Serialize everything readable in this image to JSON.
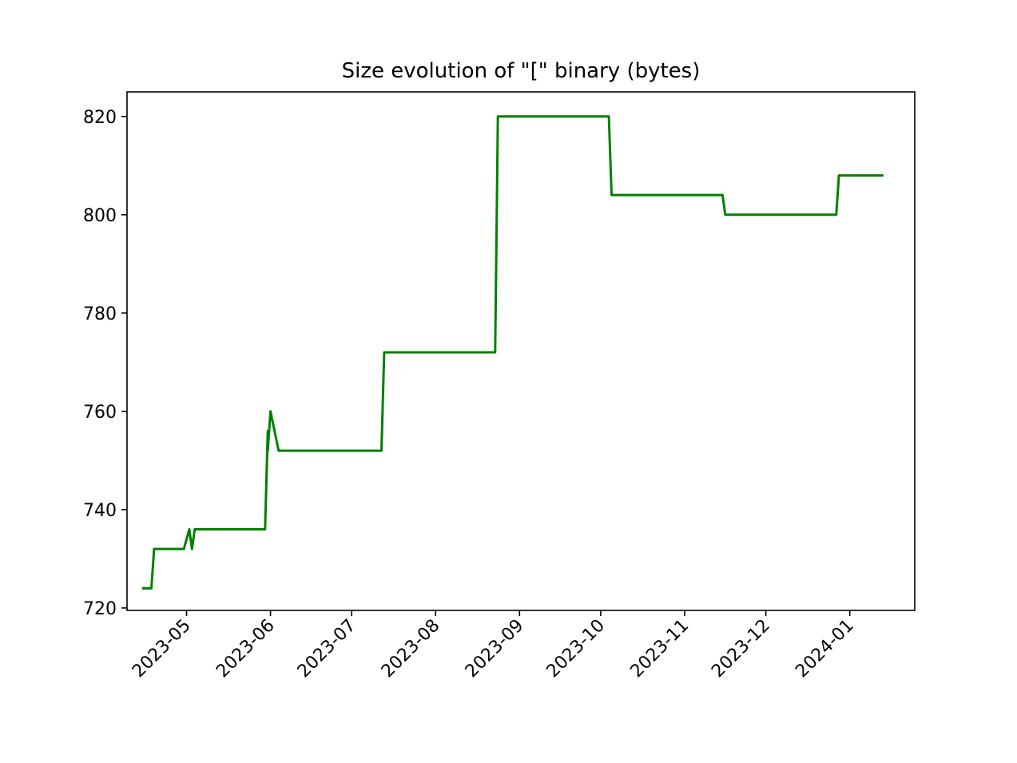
{
  "chart_data": {
    "type": "line",
    "title": "Size evolution of \"[\" binary (bytes)",
    "xlabel": "",
    "ylabel": "",
    "x_axis": {
      "type": "date",
      "range": [
        "2023-04-09",
        "2024-01-25"
      ],
      "ticks": [
        "2023-05",
        "2023-06",
        "2023-07",
        "2023-08",
        "2023-09",
        "2023-10",
        "2023-11",
        "2023-12",
        "2024-01"
      ],
      "tick_dates": [
        "2023-05-01",
        "2023-06-01",
        "2023-07-01",
        "2023-08-01",
        "2023-09-01",
        "2023-10-01",
        "2023-11-01",
        "2023-12-01",
        "2024-01-01"
      ],
      "tick_label_rotation": "45deg"
    },
    "y_axis": {
      "range": [
        719.5,
        825
      ],
      "ticks": [
        720,
        740,
        760,
        780,
        800,
        820
      ]
    },
    "grid": false,
    "legend": "none",
    "colors": {
      "line": "#008000"
    },
    "series": [
      {
        "points": [
          {
            "x": "2023-04-15",
            "y": 724
          },
          {
            "x": "2023-04-18",
            "y": 724
          },
          {
            "x": "2023-04-19",
            "y": 732
          },
          {
            "x": "2023-04-30",
            "y": 732
          },
          {
            "x": "2023-05-02",
            "y": 736
          },
          {
            "x": "2023-05-03",
            "y": 732
          },
          {
            "x": "2023-05-04",
            "y": 736
          },
          {
            "x": "2023-05-30",
            "y": 736
          },
          {
            "x": "2023-05-31",
            "y": 756
          },
          {
            "x": "2023-05-31",
            "y": 752
          },
          {
            "x": "2023-06-01",
            "y": 760
          },
          {
            "x": "2023-06-04",
            "y": 752
          },
          {
            "x": "2023-07-12",
            "y": 752
          },
          {
            "x": "2023-07-13",
            "y": 772
          },
          {
            "x": "2023-08-23",
            "y": 772
          },
          {
            "x": "2023-08-24",
            "y": 820
          },
          {
            "x": "2023-10-04",
            "y": 820
          },
          {
            "x": "2023-10-05",
            "y": 804
          },
          {
            "x": "2023-11-15",
            "y": 804
          },
          {
            "x": "2023-11-16",
            "y": 800
          },
          {
            "x": "2023-12-27",
            "y": 800
          },
          {
            "x": "2023-12-28",
            "y": 808
          },
          {
            "x": "2024-01-13",
            "y": 808
          }
        ]
      }
    ]
  }
}
